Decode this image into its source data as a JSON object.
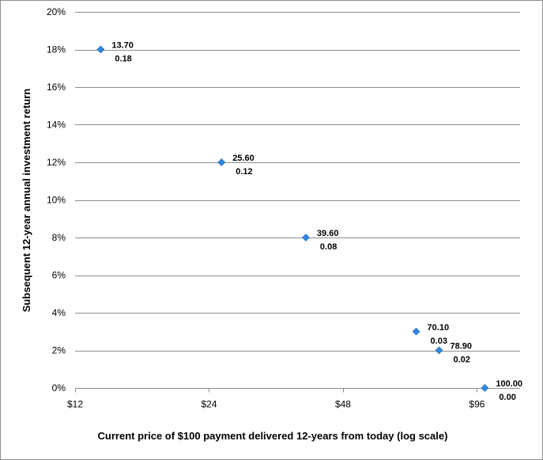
{
  "chart_data": {
    "type": "scatter",
    "title": "",
    "xlabel": "Current price of $100 payment delivered 12-years from today (log scale)",
    "ylabel": "Subsequent 12-year annual investment return",
    "x_scale": "log2",
    "xlim": [
      12,
      120
    ],
    "ylim": [
      0,
      0.2
    ],
    "x_ticks": [
      12,
      24,
      48,
      96
    ],
    "x_tick_labels": [
      "$12",
      "$24",
      "$48",
      "$96"
    ],
    "y_ticks": [
      0,
      0.02,
      0.04,
      0.06,
      0.08,
      0.1,
      0.12,
      0.14,
      0.16,
      0.18,
      0.2
    ],
    "y_tick_labels": [
      "0%",
      "2%",
      "4%",
      "6%",
      "8%",
      "10%",
      "12%",
      "14%",
      "16%",
      "18%",
      "20%"
    ],
    "grid": "horizontal",
    "legend": "none",
    "marker_color": "#2e86de",
    "points": [
      {
        "x": 13.7,
        "y": 0.18,
        "label_x": "13.70",
        "label_y": "0.18"
      },
      {
        "x": 25.6,
        "y": 0.12,
        "label_x": "25.60",
        "label_y": "0.12"
      },
      {
        "x": 39.6,
        "y": 0.08,
        "label_x": "39.60",
        "label_y": "0.08"
      },
      {
        "x": 70.1,
        "y": 0.03,
        "label_x": "70.10",
        "label_y": "0.03"
      },
      {
        "x": 78.9,
        "y": 0.02,
        "label_x": "78.90",
        "label_y": "0.02"
      },
      {
        "x": 100.0,
        "y": 0.0,
        "label_x": "100.00",
        "label_y": "0.00"
      }
    ]
  }
}
